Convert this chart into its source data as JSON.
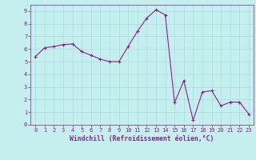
{
  "x": [
    0,
    1,
    2,
    3,
    4,
    5,
    6,
    7,
    8,
    9,
    10,
    11,
    12,
    13,
    14,
    15,
    16,
    17,
    18,
    19,
    20,
    21,
    22,
    23
  ],
  "y": [
    5.4,
    6.1,
    6.2,
    6.35,
    6.4,
    5.8,
    5.5,
    5.2,
    5.0,
    5.0,
    6.2,
    7.4,
    8.45,
    9.1,
    8.7,
    1.75,
    3.5,
    0.35,
    2.6,
    2.7,
    1.5,
    1.8,
    1.8,
    0.85
  ],
  "line_color": "#882288",
  "marker": "+",
  "marker_size": 3.5,
  "marker_linewidth": 0.8,
  "background_color": "#c5eeee",
  "grid_color": "#aadddd",
  "axis_color": "#882288",
  "xlabel": "Windchill (Refroidissement éolien,°C)",
  "xlim": [
    -0.5,
    23.5
  ],
  "ylim": [
    0,
    9.5
  ],
  "yticks": [
    0,
    1,
    2,
    3,
    4,
    5,
    6,
    7,
    8,
    9
  ],
  "xticks": [
    0,
    1,
    2,
    3,
    4,
    5,
    6,
    7,
    8,
    9,
    10,
    11,
    12,
    13,
    14,
    15,
    16,
    17,
    18,
    19,
    20,
    21,
    22,
    23
  ],
  "xlabel_fontsize": 5.8,
  "tick_fontsize": 5.0,
  "linewidth": 0.8
}
